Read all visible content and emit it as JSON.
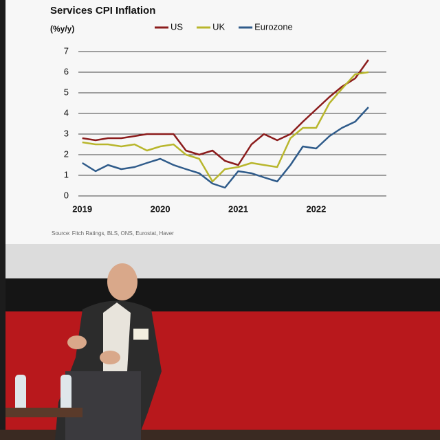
{
  "chart_data": {
    "type": "line",
    "title": "Services CPI Inflation",
    "y_label": "(%y/y)",
    "source": "Source: Fitch Ratings, BLS, ONS, Eurostat, Haver",
    "x": [
      2019,
      2019.17,
      2019.33,
      2019.5,
      2019.67,
      2019.83,
      2020,
      2020.17,
      2020.33,
      2020.5,
      2020.67,
      2020.83,
      2021,
      2021.17,
      2021.33,
      2021.5,
      2021.67,
      2021.83,
      2022,
      2022.17,
      2022.33,
      2022.5,
      2022.67
    ],
    "series": [
      {
        "name": "US",
        "color": "#8b1c1c",
        "values": [
          2.8,
          2.7,
          2.8,
          2.8,
          2.9,
          3.0,
          3.0,
          3.0,
          2.2,
          2.0,
          2.2,
          1.7,
          1.5,
          2.5,
          3.0,
          2.7,
          3.0,
          3.6,
          4.2,
          4.8,
          5.3,
          5.7,
          6.6
        ]
      },
      {
        "name": "UK",
        "color": "#b8b62c",
        "values": [
          2.6,
          2.5,
          2.5,
          2.4,
          2.5,
          2.2,
          2.4,
          2.5,
          2.0,
          1.8,
          0.7,
          1.3,
          1.4,
          1.6,
          1.5,
          1.4,
          2.8,
          3.3,
          3.3,
          4.5,
          5.2,
          5.9,
          6.0
        ]
      },
      {
        "name": "Eurozone",
        "color": "#2f5b8a",
        "values": [
          1.6,
          1.2,
          1.5,
          1.3,
          1.4,
          1.6,
          1.8,
          1.5,
          1.3,
          1.1,
          0.6,
          0.4,
          1.2,
          1.1,
          0.9,
          0.7,
          1.5,
          2.4,
          2.3,
          2.9,
          3.3,
          3.6,
          4.3
        ]
      }
    ],
    "xlim": [
      2018.95,
      2022.9
    ],
    "xticks": [
      2019,
      2020,
      2021,
      2022
    ],
    "ylim": [
      0,
      7
    ],
    "yticks": [
      0,
      1,
      2,
      3,
      4,
      5,
      6,
      7
    ],
    "grid": true
  }
}
